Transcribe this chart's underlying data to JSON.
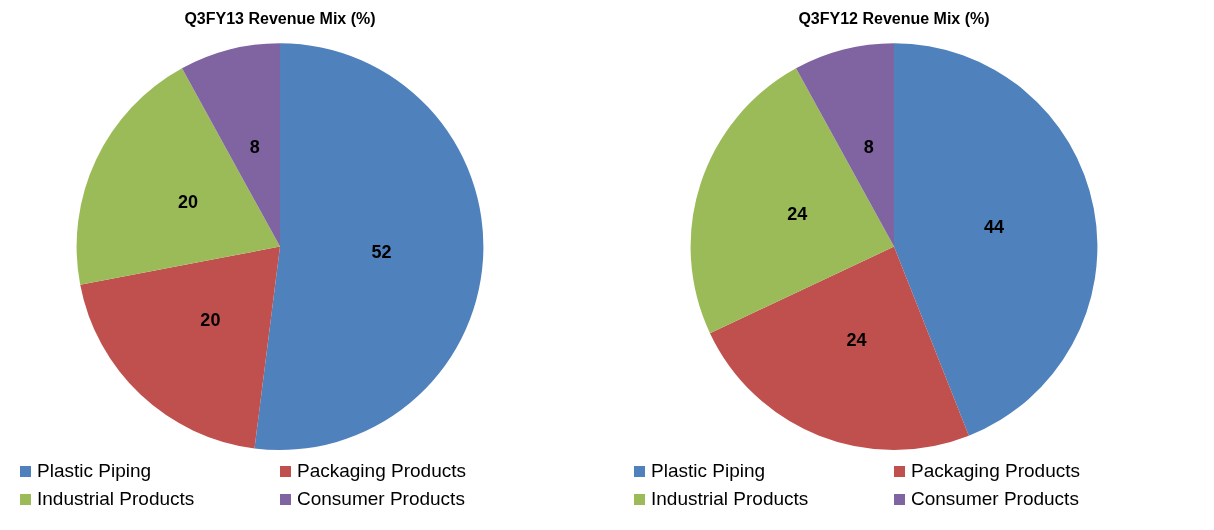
{
  "chart_data": [
    {
      "type": "pie",
      "title": "Q3FY13 Revenue Mix (%)",
      "categories": [
        "Plastic Piping",
        "Packaging Products",
        "Industrial Products",
        "Consumer Products"
      ],
      "values": [
        52,
        20,
        20,
        8
      ],
      "colors": [
        "#4f81bd",
        "#c0504d",
        "#9bbb59",
        "#8064a2"
      ],
      "data_labels": true,
      "legend": "bottom"
    },
    {
      "type": "pie",
      "title": "Q3FY12 Revenue Mix (%)",
      "categories": [
        "Plastic Piping",
        "Packaging Products",
        "Industrial Products",
        "Consumer Products"
      ],
      "values": [
        44,
        24,
        24,
        8
      ],
      "colors": [
        "#4f81bd",
        "#c0504d",
        "#9bbb59",
        "#8064a2"
      ],
      "data_labels": true,
      "legend": "bottom"
    }
  ]
}
